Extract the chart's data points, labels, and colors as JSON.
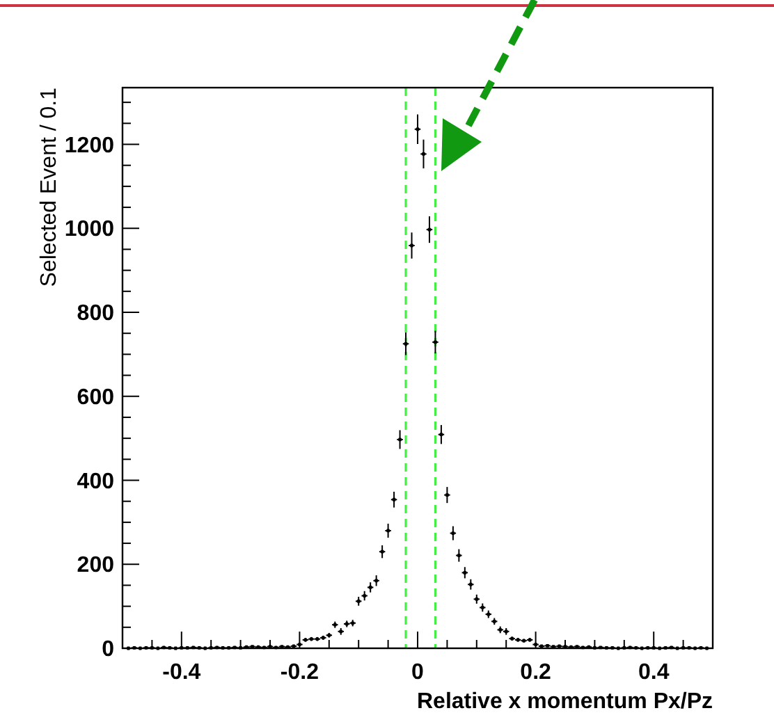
{
  "chart_data": {
    "type": "scatter",
    "xlabel": "Relative x momentum Px/Pz",
    "ylabel": "Selected Event / 0.1",
    "xlim": [
      -0.5,
      0.5
    ],
    "ylim": [
      0,
      1335
    ],
    "marker": "cross",
    "grid": false,
    "xticks": [
      {
        "value": -0.45,
        "label": null
      },
      -0.4,
      {
        "value": -0.35,
        "label": null
      },
      {
        "value": -0.3,
        "label": null
      },
      {
        "value": -0.25,
        "label": null
      },
      -0.2,
      {
        "value": -0.15,
        "label": null
      },
      {
        "value": -0.1,
        "label": null
      },
      {
        "value": -0.05,
        "label": null
      },
      0,
      {
        "value": 0.05,
        "label": null
      },
      {
        "value": 0.1,
        "label": null
      },
      {
        "value": 0.15,
        "label": null
      },
      0.2,
      {
        "value": 0.25,
        "label": null
      },
      {
        "value": 0.3,
        "label": null
      },
      {
        "value": 0.35,
        "label": null
      },
      0.4,
      {
        "value": 0.45,
        "label": null
      }
    ],
    "yticks": [
      0,
      {
        "value": 50,
        "label": null
      },
      {
        "value": 100,
        "label": null
      },
      {
        "value": 150,
        "label": null
      },
      200,
      {
        "value": 250,
        "label": null
      },
      {
        "value": 300,
        "label": null
      },
      {
        "value": 350,
        "label": null
      },
      400,
      {
        "value": 450,
        "label": null
      },
      {
        "value": 500,
        "label": null
      },
      {
        "value": 550,
        "label": null
      },
      600,
      {
        "value": 650,
        "label": null
      },
      {
        "value": 700,
        "label": null
      },
      {
        "value": 750,
        "label": null
      },
      800,
      {
        "value": 850,
        "label": null
      },
      {
        "value": 900,
        "label": null
      },
      {
        "value": 950,
        "label": null
      },
      1000,
      {
        "value": 1050,
        "label": null
      },
      {
        "value": 1100,
        "label": null
      },
      {
        "value": 1150,
        "label": null
      },
      1200,
      {
        "value": 1250,
        "label": null
      },
      {
        "value": 1300,
        "label": null
      }
    ],
    "ref_lines": [
      {
        "axis": "x",
        "value": -0.02,
        "color": "#44ee44",
        "line_style": "dashed"
      },
      {
        "axis": "x",
        "value": 0.03,
        "color": "#44ee44",
        "line_style": "dashed"
      }
    ],
    "series": [
      {
        "color": "#000000",
        "x": [
          -0.49,
          -0.48,
          -0.47,
          -0.46,
          -0.45,
          -0.44,
          -0.43,
          -0.42,
          -0.41,
          -0.4,
          -0.39,
          -0.38,
          -0.37,
          -0.36,
          -0.35,
          -0.34,
          -0.33,
          -0.32,
          -0.31,
          -0.3,
          -0.29,
          -0.28,
          -0.27,
          -0.26,
          -0.25,
          -0.24,
          -0.23,
          -0.22,
          -0.21,
          -0.2,
          -0.19,
          -0.18,
          -0.17,
          -0.16,
          -0.15,
          -0.14,
          -0.13,
          -0.12,
          -0.11,
          -0.1,
          -0.09,
          -0.08,
          -0.07,
          -0.06,
          -0.05,
          -0.04,
          -0.03,
          -0.02,
          -0.01,
          0,
          0.01,
          0.02,
          0.03,
          0.04,
          0.05,
          0.06,
          0.07,
          0.08,
          0.09,
          0.1,
          0.11,
          0.12,
          0.13,
          0.14,
          0.15,
          0.16,
          0.17,
          0.18,
          0.19,
          0.2,
          0.21,
          0.22,
          0.23,
          0.24,
          0.25,
          0.26,
          0.27,
          0.28,
          0.29,
          0.3,
          0.31,
          0.32,
          0.33,
          0.34,
          0.35,
          0.36,
          0.37,
          0.38,
          0.39,
          0.4,
          0.41,
          0.42,
          0.43,
          0.44,
          0.45,
          0.46,
          0.47,
          0.48,
          0.49
        ],
        "values": [
          0,
          1,
          0,
          1,
          1,
          0,
          2,
          1,
          0,
          1,
          1,
          2,
          1,
          0,
          1,
          2,
          1,
          1,
          2,
          1,
          3,
          4,
          3,
          2,
          4,
          2,
          4,
          3,
          5,
          9,
          20,
          22,
          22,
          25,
          31,
          56,
          40,
          58,
          60,
          112,
          125,
          145,
          161,
          230,
          280,
          354,
          497,
          725,
          959,
          1236,
          1177,
          997,
          729,
          509,
          365,
          274,
          221,
          180,
          152,
          117,
          97,
          81,
          64,
          44,
          40,
          23,
          20,
          18,
          20,
          9,
          5,
          6,
          4,
          5,
          4,
          3,
          4,
          2,
          3,
          1,
          2,
          1,
          1,
          0,
          1,
          2,
          1,
          0,
          1,
          1,
          0,
          1,
          2,
          0,
          1,
          1,
          0,
          1,
          0
        ],
        "errors": [
          null,
          1,
          null,
          1,
          1,
          null,
          1.4,
          1,
          null,
          1,
          1,
          1.4,
          1,
          null,
          1,
          1.4,
          1,
          1,
          1.4,
          1,
          1.7,
          2,
          1.7,
          1.4,
          2,
          1.4,
          2,
          1.7,
          2.2,
          3,
          4.5,
          4.7,
          4.7,
          5,
          5.6,
          7.5,
          8,
          7.6,
          7.7,
          10.6,
          11.2,
          12,
          12.7,
          15.2,
          16.7,
          18.8,
          22.3,
          26.9,
          31,
          35.2,
          34.3,
          31.6,
          27,
          22.6,
          19.1,
          16.6,
          14.9,
          13.4,
          12.3,
          10.8,
          9.8,
          9,
          8,
          8,
          8,
          4.8,
          4.5,
          4.2,
          4.5,
          3,
          2.2,
          2.4,
          2,
          2.2,
          2,
          1.7,
          2,
          1.4,
          1.7,
          1,
          1.4,
          1,
          1,
          null,
          1,
          1.4,
          1,
          null,
          1,
          1,
          null,
          1,
          1.4,
          null,
          1,
          1,
          null,
          1,
          null
        ],
        "xerrors": [
          0.005,
          0.005,
          0.005,
          0.005,
          0.005,
          0.005,
          0.005,
          0.005,
          0.005,
          0.005,
          0.005,
          0.005,
          0.005,
          0.005,
          0.005,
          0.005,
          0.005,
          0.005,
          0.005,
          0.005,
          0.005,
          0.005,
          0.005,
          0.005,
          0.005,
          0.005,
          0.005,
          0.005,
          0.005,
          0.005,
          0.005,
          0.005,
          0.005,
          0.005,
          0.005,
          0.005,
          0.005,
          0.005,
          0.005,
          0.005,
          0.005,
          0.005,
          0.005,
          0.005,
          0.005,
          0.005,
          0.005,
          0.005,
          0.005,
          0.005,
          0.005,
          0.005,
          0.005,
          0.005,
          0.005,
          0.005,
          0.005,
          0.005,
          0.005,
          0.005,
          0.005,
          0.005,
          0.005,
          0.005,
          0.005,
          0.005,
          0.005,
          0.005,
          0.005,
          0.005,
          0.005,
          0.005,
          0.005,
          0.005,
          0.005,
          0.005,
          0.005,
          0.005,
          0.005,
          0.005,
          0.005,
          0.005,
          0.005,
          0.005,
          0.005,
          0.005,
          0.005,
          0.005,
          0.005,
          0.005,
          0.005,
          0.005,
          0.005,
          0.005,
          0.005,
          0.005,
          0.005,
          0.005,
          0.005
        ]
      }
    ]
  }
}
